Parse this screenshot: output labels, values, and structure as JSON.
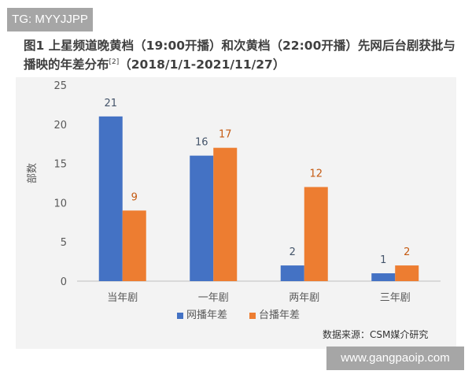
{
  "watermark_top": "TG: MYYJJPP",
  "watermark_bottom": "www.gangpaoip.com",
  "source": "数据来源：CSM媒介研究",
  "chart_data": {
    "type": "bar",
    "title": "图1 上星频道晚黄档（19:00开播）和次黄档（22:00开播）先网后台剧获批与播映的年差分布",
    "title_sup": "[2]",
    "title_tail": "（2018/1/1-2021/11/27）",
    "xlabel": "",
    "ylabel": "部数",
    "ylim": [
      0,
      25
    ],
    "yticks": [
      0,
      5,
      10,
      15,
      20,
      25
    ],
    "grid": false,
    "legend_position": "bottom",
    "categories": [
      "当年剧",
      "一年剧",
      "两年剧",
      "三年剧"
    ],
    "series": [
      {
        "name": "网播年差",
        "color": "#4472c4",
        "label_color": "#44546a",
        "values": [
          21,
          16,
          2,
          1
        ]
      },
      {
        "name": "台播年差",
        "color": "#ed7d31",
        "label_color": "#c55a11",
        "values": [
          9,
          17,
          12,
          2
        ]
      }
    ]
  }
}
